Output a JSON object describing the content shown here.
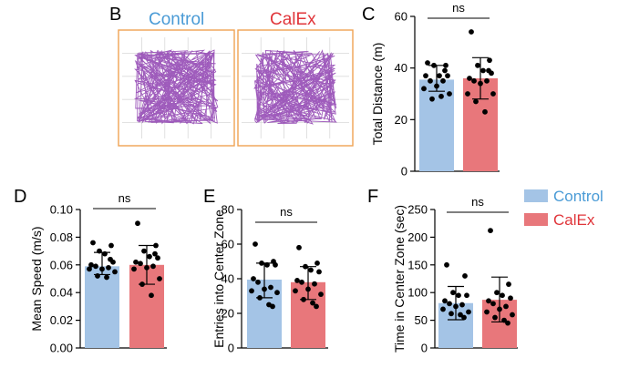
{
  "panel_b": {
    "letter": "B",
    "groups": [
      "Control",
      "CalEx"
    ]
  },
  "legend": {
    "items": [
      {
        "label": "Control",
        "color": "#a4c4e6"
      },
      {
        "label": "CalEx",
        "color": "#e8777b"
      }
    ],
    "label_colors": {
      "Control": "#4a9bd6",
      "CalEx": "#e0353a"
    }
  },
  "colors": {
    "track": "#8e3fb0",
    "arena": "#f0a253",
    "grid": "#d9d9d9"
  },
  "chart_data": [
    {
      "panel": "C",
      "type": "bar",
      "categories": [
        "Control",
        "CalEx"
      ],
      "values": [
        35.5,
        36
      ],
      "error": [
        [
          31,
          41
        ],
        [
          28,
          44
        ]
      ],
      "points": [
        [
          42,
          41,
          41,
          37,
          37,
          37,
          35,
          35,
          33,
          32,
          30,
          28,
          29,
          39
        ],
        [
          54,
          43,
          41,
          39,
          38,
          36,
          35,
          35,
          34,
          30,
          30,
          27,
          23,
          39
        ]
      ],
      "ylabel": "Total Distance (m)",
      "ylim": [
        0,
        60
      ],
      "yticks": [
        0,
        20,
        40,
        60
      ],
      "significance": "ns"
    },
    {
      "panel": "D",
      "type": "bar",
      "categories": [
        "Control",
        "CalEx"
      ],
      "values": [
        0.059,
        0.06
      ],
      "error": [
        [
          0.053,
          0.069
        ],
        [
          0.046,
          0.074
        ]
      ],
      "points": [
        [
          0.076,
          0.074,
          0.07,
          0.068,
          0.062,
          0.06,
          0.059,
          0.058,
          0.057,
          0.057,
          0.055,
          0.052,
          0.051,
          0.064
        ],
        [
          0.09,
          0.074,
          0.07,
          0.066,
          0.065,
          0.062,
          0.061,
          0.059,
          0.058,
          0.057,
          0.05,
          0.046,
          0.038,
          0.068
        ]
      ],
      "ylabel": "Mean Speed (m/s)",
      "ylim": [
        0,
        0.1
      ],
      "yticks": [
        "0.00",
        "0.02",
        "0.04",
        "0.06",
        "0.08",
        "0.10"
      ],
      "significance": "ns"
    },
    {
      "panel": "E",
      "type": "bar",
      "categories": [
        "Control",
        "CalEx"
      ],
      "values": [
        39.5,
        38
      ],
      "error": [
        [
          29,
          49
        ],
        [
          28,
          47
        ]
      ],
      "points": [
        [
          60,
          50,
          49,
          48,
          48,
          40,
          38,
          35,
          34,
          33,
          32,
          29,
          25,
          24
        ],
        [
          58,
          49,
          47,
          45,
          44,
          39,
          38,
          37,
          34,
          33,
          31,
          28,
          26,
          24
        ]
      ],
      "ylabel": "Entries into Center Zone",
      "ylim": [
        0,
        80
      ],
      "yticks": [
        0,
        20,
        40,
        60,
        80
      ],
      "significance": "ns"
    },
    {
      "panel": "F",
      "type": "bar",
      "categories": [
        "Control",
        "CalEx"
      ],
      "values": [
        81,
        87
      ],
      "error": [
        [
          51,
          111
        ],
        [
          47,
          128
        ]
      ],
      "points": [
        [
          150,
          130,
          100,
          95,
          95,
          85,
          80,
          78,
          75,
          70,
          65,
          62,
          60,
          55
        ],
        [
          212,
          115,
          100,
          95,
          90,
          85,
          80,
          75,
          70,
          65,
          60,
          55,
          50,
          45
        ]
      ],
      "ylabel": "Time in Center Zone (sec)",
      "ylim": [
        0,
        250
      ],
      "yticks": [
        0,
        50,
        100,
        150,
        200,
        250
      ],
      "significance": "ns"
    }
  ]
}
